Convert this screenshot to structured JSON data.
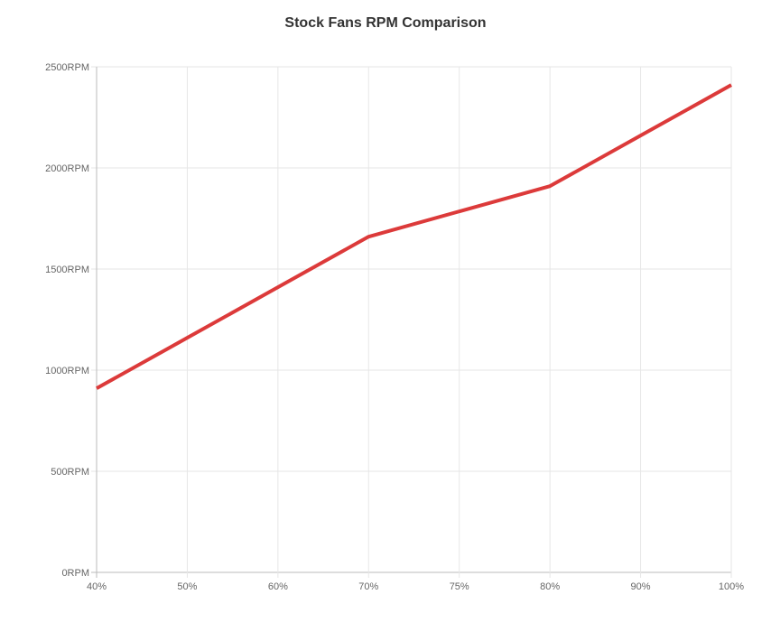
{
  "chart_data": {
    "type": "line",
    "title": "Stock Fans RPM Comparison",
    "categories": [
      "40%",
      "50%",
      "60%",
      "70%",
      "75%",
      "80%",
      "90%",
      "100%"
    ],
    "series": [
      {
        "name": "Stock Fans",
        "values": [
          910,
          1160,
          1410,
          1660,
          1785,
          1910,
          2160,
          2410
        ],
        "color": "#dc3a3a"
      }
    ],
    "yticks": [
      "0RPM",
      "500RPM",
      "1000RPM",
      "1500RPM",
      "2000RPM",
      "2500RPM"
    ],
    "ylim": [
      0,
      2500
    ],
    "grid": true,
    "xlabel": "",
    "ylabel": ""
  }
}
